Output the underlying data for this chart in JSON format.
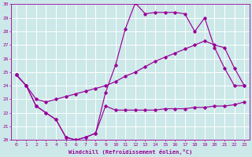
{
  "xlabel": "Windchill (Refroidissement éolien,°C)",
  "bg_color": "#cce8e8",
  "grid_color": "#aacccc",
  "line_color": "#990099",
  "xlim": [
    -0.5,
    23.5
  ],
  "ylim": [
    20,
    30
  ],
  "xticks": [
    0,
    1,
    2,
    3,
    4,
    5,
    6,
    7,
    8,
    9,
    10,
    11,
    12,
    13,
    14,
    15,
    16,
    17,
    18,
    19,
    20,
    21,
    22,
    23
  ],
  "yticks": [
    20,
    21,
    22,
    23,
    24,
    25,
    26,
    27,
    28,
    29,
    30
  ],
  "line1_x": [
    0,
    1,
    2,
    3,
    4,
    5,
    6,
    7,
    8,
    9,
    10,
    11,
    12,
    13,
    14,
    15,
    16,
    17,
    18,
    19,
    20,
    21,
    22,
    23
  ],
  "line1_y": [
    24.8,
    24.0,
    22.5,
    22.0,
    21.5,
    20.2,
    20.0,
    20.2,
    20.5,
    22.5,
    22.2,
    22.2,
    22.2,
    22.2,
    22.2,
    22.3,
    22.3,
    22.3,
    22.4,
    22.4,
    22.5,
    22.5,
    22.6,
    22.8
  ],
  "line2_x": [
    0,
    1,
    2,
    3,
    4,
    5,
    6,
    7,
    8,
    9,
    10,
    11,
    12,
    13,
    14,
    15,
    16,
    17,
    18,
    19,
    20,
    21,
    22,
    23
  ],
  "line2_y": [
    24.8,
    24.0,
    22.5,
    22.0,
    21.5,
    20.2,
    20.0,
    20.2,
    20.5,
    23.5,
    25.5,
    28.2,
    30.1,
    29.3,
    29.4,
    29.4,
    29.4,
    29.3,
    28.0,
    29.0,
    26.8,
    25.3,
    24.0,
    24.0
  ],
  "line3_x": [
    0,
    1,
    2,
    3,
    4,
    5,
    6,
    7,
    8,
    9,
    10,
    11,
    12,
    13,
    14,
    15,
    16,
    17,
    18,
    19,
    20,
    21,
    22,
    23
  ],
  "line3_y": [
    24.8,
    24.0,
    23.0,
    22.8,
    23.0,
    23.2,
    23.4,
    23.6,
    23.8,
    24.0,
    24.3,
    24.7,
    25.0,
    25.4,
    25.8,
    26.1,
    26.4,
    26.7,
    27.0,
    27.3,
    27.0,
    26.8,
    25.3,
    24.0
  ]
}
